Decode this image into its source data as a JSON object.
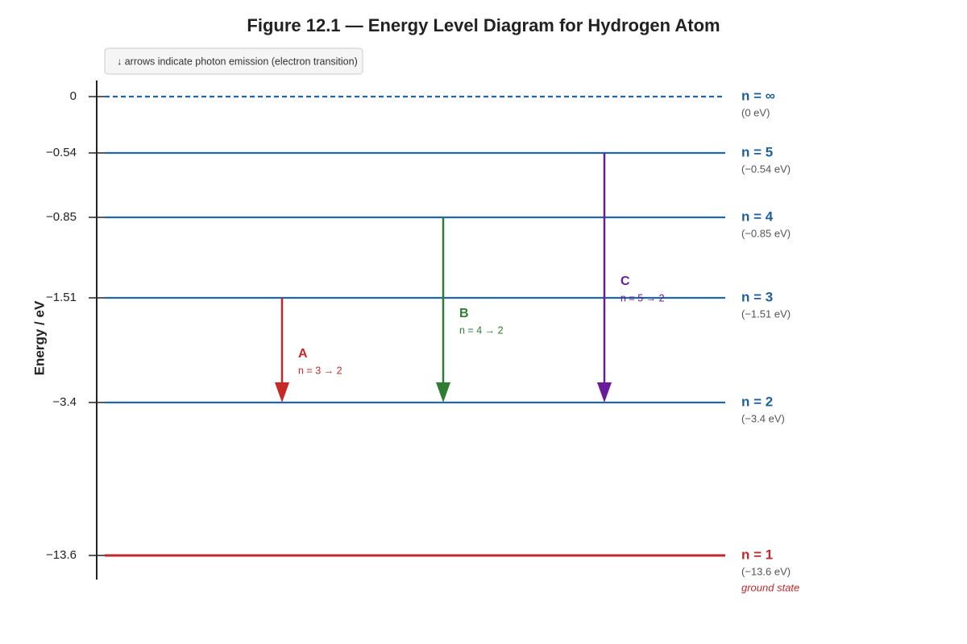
{
  "title": "Figure 12.1 — Energy Level Diagram for Hydrogen Atom",
  "note": "↓ arrows indicate photon emission (electron transition)",
  "axis_label": "Energy / eV",
  "levels": [
    {
      "tick": "0",
      "label": "n = ∞",
      "energy": "(0 eV)"
    },
    {
      "tick": "−0.54",
      "label": "n = 5",
      "energy": "(−0.54 eV)"
    },
    {
      "tick": "−0.85",
      "label": "n = 4",
      "energy": "(−0.85 eV)"
    },
    {
      "tick": "−1.51",
      "label": "n = 3",
      "energy": "(−1.51 eV)"
    },
    {
      "tick": "−3.4",
      "label": "n = 2",
      "energy": "(−3.4 eV)"
    },
    {
      "tick": "−13.6",
      "label": "n = 1",
      "energy": "(−13.6 eV)",
      "note": "ground state"
    }
  ],
  "transitions": [
    {
      "label": "A",
      "detail": "n = 3 → 2"
    },
    {
      "label": "B",
      "detail": "n = 4 → 2"
    },
    {
      "label": "C",
      "detail": "n = 5 → 2"
    }
  ]
}
